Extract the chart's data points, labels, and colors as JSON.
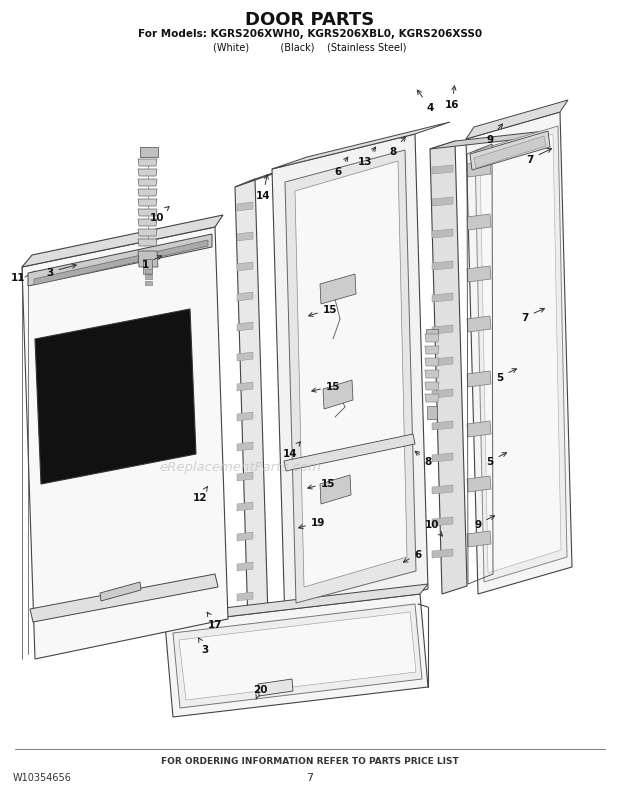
{
  "title": "DOOR PARTS",
  "subtitle": "For Models: KGRS206XWH0, KGRS206XBL0, KGRS206XSS0",
  "subtitle2": "(White)          (Black)    (Stainless Steel)",
  "footer_left": "W10354656",
  "footer_center": "FOR ORDERING INFORMATION REFER TO PARTS PRICE LIST",
  "footer_page": "7",
  "bg_color": "#ffffff",
  "text_color": "#1a1a1a",
  "watermark": "eReplacementParts.com",
  "line_color": "#444444",
  "lw": 0.8
}
